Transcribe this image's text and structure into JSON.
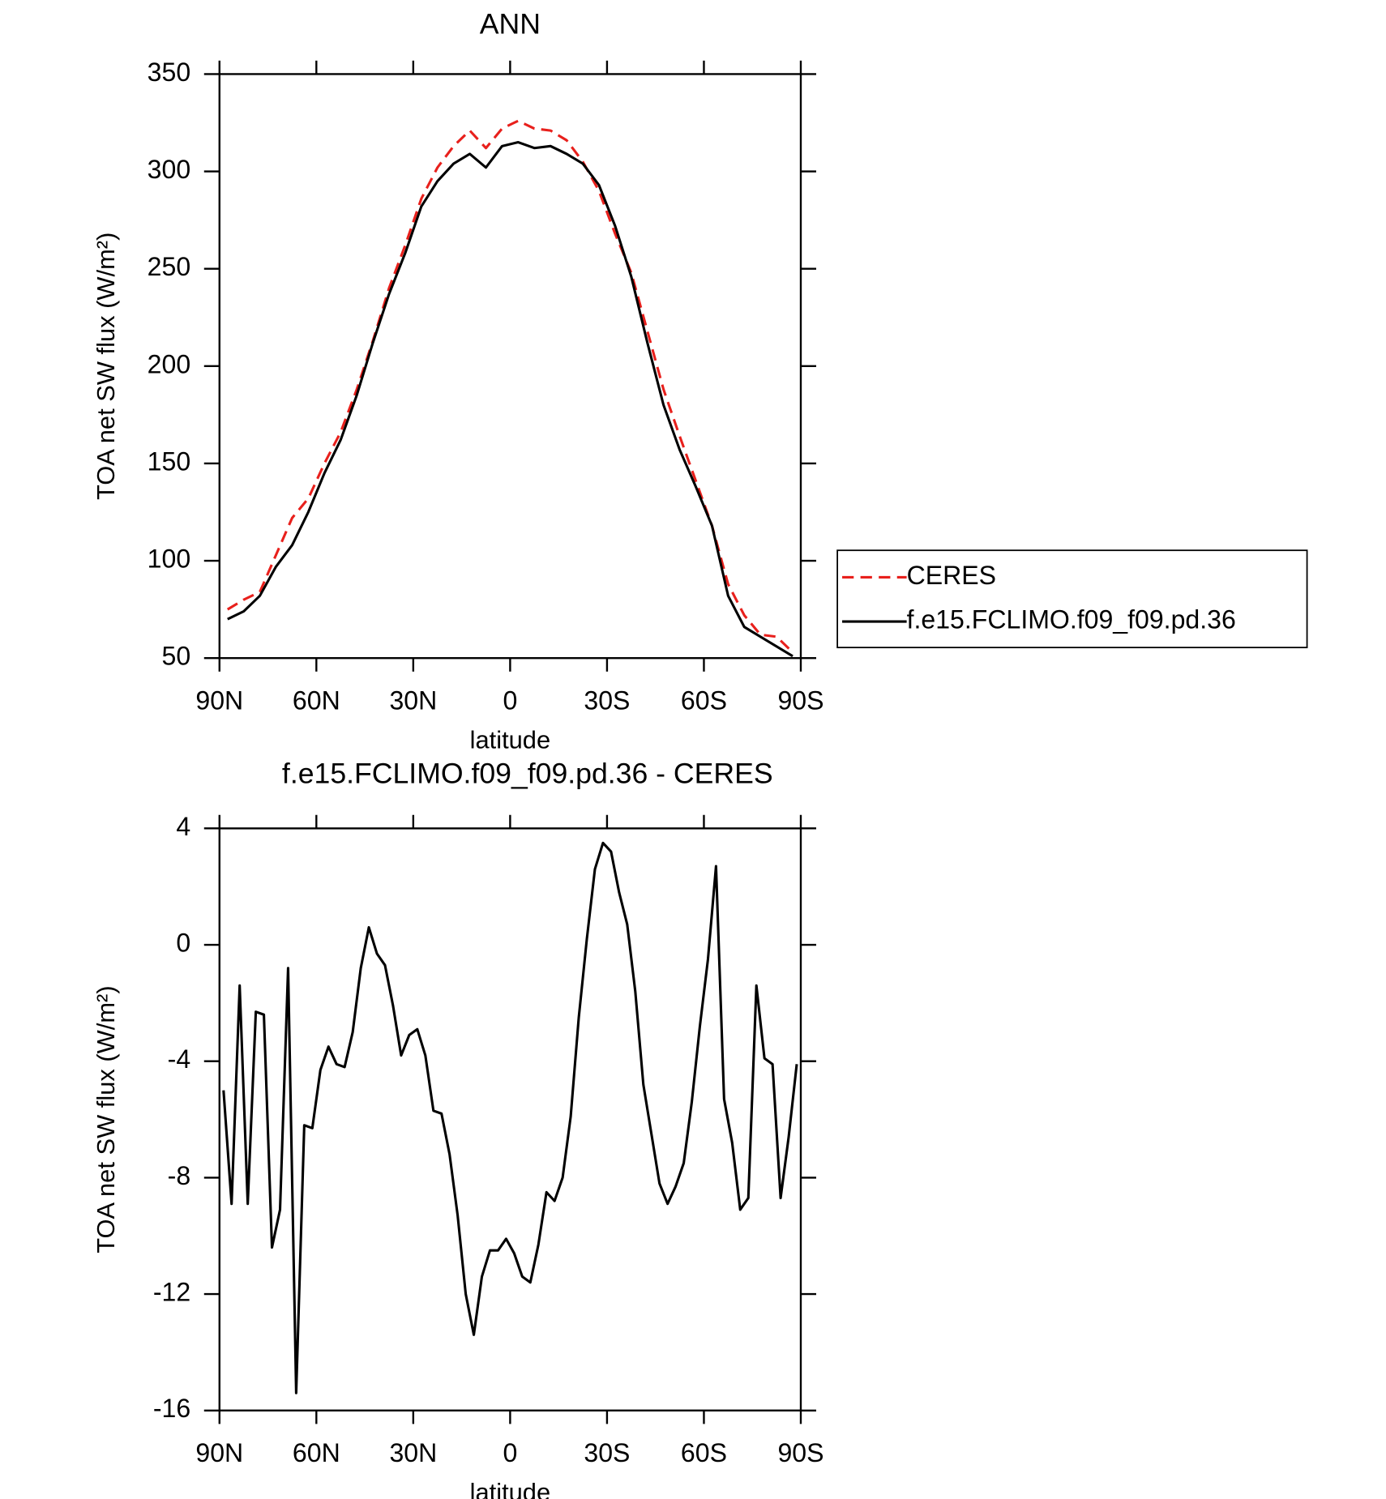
{
  "chart_data": [
    {
      "type": "line",
      "title": "ANN",
      "xlabel": "latitude",
      "ylabel": "TOA net SW flux (W/m²)",
      "x": [
        87.5,
        82.5,
        77.5,
        72.5,
        67.5,
        62.5,
        57.5,
        52.5,
        47.5,
        42.5,
        37.5,
        32.5,
        27.5,
        22.5,
        17.5,
        12.5,
        7.5,
        2.5,
        -2.5,
        -7.5,
        -12.5,
        -17.5,
        -22.5,
        -27.5,
        -32.5,
        -37.5,
        -42.5,
        -47.5,
        -52.5,
        -57.5,
        -62.5,
        -67.5,
        -72.5,
        -77.5,
        -82.5,
        -87.5
      ],
      "series": [
        {
          "name": "CERES",
          "color": "#e8201c",
          "dashed": true,
          "values": [
            75,
            80,
            84,
            103,
            122,
            132,
            150,
            166,
            188,
            213,
            240,
            262,
            286,
            302,
            313,
            321,
            312,
            322,
            326,
            322,
            321,
            316,
            305,
            290,
            268,
            248,
            218,
            188,
            164,
            141,
            118,
            88,
            72,
            62,
            61,
            53
          ]
        },
        {
          "name": "f.e15.FCLIMO.f09_f09.pd.36",
          "color": "#000000",
          "dashed": false,
          "values": [
            70,
            74,
            82,
            97,
            108,
            125,
            145,
            162,
            185,
            212,
            237,
            258,
            282,
            295,
            304,
            309,
            302,
            313,
            315,
            312,
            313,
            309,
            304,
            293,
            272,
            246,
            212,
            180,
            157,
            138,
            118,
            82,
            66,
            61,
            56,
            51
          ]
        }
      ],
      "xlim": [
        90,
        -90
      ],
      "xticks": [
        {
          "value": 90,
          "label": "90N"
        },
        {
          "value": 60,
          "label": "60N"
        },
        {
          "value": 30,
          "label": "30N"
        },
        0,
        {
          "value": -30,
          "label": "30S"
        },
        {
          "value": -60,
          "label": "60S"
        },
        {
          "value": -90,
          "label": "90S"
        }
      ],
      "ylim": [
        50,
        350
      ],
      "yticks": [
        50,
        100,
        150,
        200,
        250,
        300,
        350
      ],
      "legend": "right"
    },
    {
      "type": "line",
      "title": "f.e15.FCLIMO.f09_f09.pd.36 - CERES",
      "xlabel": "latitude",
      "ylabel": "TOA net SW flux (W/m²)",
      "x": [
        88.75,
        86.25,
        83.75,
        81.25,
        78.75,
        76.25,
        73.75,
        71.25,
        68.75,
        66.25,
        63.75,
        61.25,
        58.75,
        56.25,
        53.75,
        51.25,
        48.75,
        46.25,
        43.75,
        41.25,
        38.75,
        36.25,
        33.75,
        31.25,
        28.75,
        26.25,
        23.75,
        21.25,
        18.75,
        16.25,
        13.75,
        11.25,
        8.75,
        6.25,
        3.75,
        1.25,
        -1.25,
        -3.75,
        -6.25,
        -8.75,
        -11.25,
        -13.75,
        -16.25,
        -18.75,
        -21.25,
        -23.75,
        -26.25,
        -28.75,
        -31.25,
        -33.75,
        -36.25,
        -38.75,
        -41.25,
        -43.75,
        -46.25,
        -48.75,
        -51.25,
        -53.75,
        -56.25,
        -58.75,
        -61.25,
        -63.75,
        -66.25,
        -68.75,
        -71.25,
        -73.75,
        -76.25,
        -78.75,
        -81.25,
        -83.75,
        -86.25,
        -88.75
      ],
      "series": [
        {
          "color": "#000000",
          "dashed": false,
          "values": [
            -5,
            -8.9,
            -1.4,
            -8.9,
            -2.3,
            -2.4,
            -10.4,
            -9.1,
            -0.8,
            -15.4,
            -6.2,
            -6.3,
            -4.3,
            -3.5,
            -4.1,
            -4.2,
            -3.0,
            -0.8,
            0.6,
            -0.3,
            -0.7,
            -2.1,
            -3.8,
            -3.1,
            -2.9,
            -3.8,
            -5.7,
            -5.8,
            -7.2,
            -9.3,
            -12,
            -13.4,
            -11.4,
            -10.5,
            -10.5,
            -10.1,
            -10.6,
            -11.4,
            -11.6,
            -10.3,
            -8.5,
            -8.8,
            -8.0,
            -5.9,
            -2.5,
            0.2,
            2.6,
            3.5,
            3.2,
            1.8,
            0.7,
            -1.6,
            -4.8,
            -6.5,
            -8.2,
            -8.9,
            -8.3,
            -7.5,
            -5.4,
            -2.8,
            -0.5,
            2.7,
            -5.3,
            -6.8,
            -9.1,
            -8.7,
            -1.4,
            -3.9,
            -4.1,
            -8.7,
            -6.6,
            -4.1
          ]
        }
      ],
      "xlim": [
        90,
        -90
      ],
      "xticks": [
        {
          "value": 90,
          "label": "90N"
        },
        {
          "value": 60,
          "label": "60N"
        },
        {
          "value": 30,
          "label": "30N"
        },
        0,
        {
          "value": -30,
          "label": "30S"
        },
        {
          "value": -60,
          "label": "60S"
        },
        {
          "value": -90,
          "label": "90S"
        }
      ],
      "ylim": [
        -16,
        4
      ],
      "yticks": [
        -16,
        -12,
        -8,
        -4,
        0,
        4
      ]
    }
  ]
}
